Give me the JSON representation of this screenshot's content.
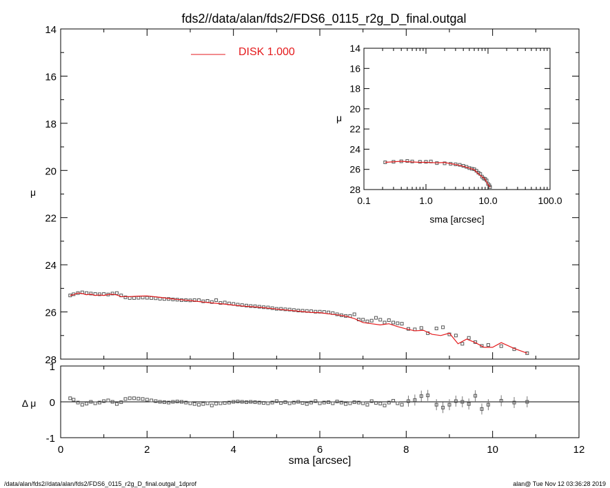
{
  "chart_data": [
    {
      "id": "main",
      "type": "scatter",
      "title": "fds2//data/alan/fds2/FDS6_0115_r2g_D_final.outgal",
      "xlabel": "",
      "ylabel": "μ",
      "xlim": [
        0,
        12
      ],
      "ylim": [
        28,
        14
      ],
      "y_inverted": true,
      "x_ticks": [
        "0",
        "2",
        "4",
        "6",
        "8",
        "10",
        "12"
      ],
      "y_ticks": [
        "14",
        "16",
        "18",
        "20",
        "22",
        "24",
        "26",
        "28"
      ],
      "legend": {
        "label": "DISK  1.000",
        "color": "#e41a1c",
        "position": "top-center"
      },
      "series": [
        {
          "marker": "square",
          "color": "#555555",
          "x": [
            0.22,
            0.3,
            0.4,
            0.5,
            0.6,
            0.7,
            0.8,
            0.9,
            1.0,
            1.1,
            1.2,
            1.3,
            1.4,
            1.5,
            1.6,
            1.7,
            1.8,
            1.9,
            2.0,
            2.1,
            2.2,
            2.3,
            2.4,
            2.5,
            2.6,
            2.7,
            2.8,
            2.9,
            3.0,
            3.1,
            3.2,
            3.3,
            3.4,
            3.5,
            3.6,
            3.7,
            3.8,
            3.9,
            4.0,
            4.1,
            4.2,
            4.3,
            4.4,
            4.5,
            4.6,
            4.7,
            4.8,
            4.9,
            5.0,
            5.1,
            5.2,
            5.3,
            5.4,
            5.5,
            5.6,
            5.7,
            5.8,
            5.9,
            6.0,
            6.1,
            6.2,
            6.3,
            6.4,
            6.5,
            6.6,
            6.7,
            6.8,
            6.9,
            7.0,
            7.1,
            7.2,
            7.3,
            7.4,
            7.5,
            7.6,
            7.7,
            7.8,
            7.9,
            8.05,
            8.2,
            8.35,
            8.5,
            8.7,
            8.85,
            9.0,
            9.15,
            9.3,
            9.45,
            9.6,
            9.75,
            9.9,
            10.2,
            10.5,
            10.8
          ],
          "y": [
            25.3,
            25.25,
            25.2,
            25.17,
            25.2,
            25.22,
            25.24,
            25.25,
            25.24,
            25.26,
            25.22,
            25.2,
            25.3,
            25.38,
            25.41,
            25.41,
            25.4,
            25.39,
            25.4,
            25.41,
            25.42,
            25.44,
            25.45,
            25.45,
            25.47,
            25.48,
            25.5,
            25.5,
            25.51,
            25.5,
            25.5,
            25.55,
            25.53,
            25.58,
            25.5,
            25.62,
            25.6,
            25.64,
            25.66,
            25.69,
            25.71,
            25.73,
            25.75,
            25.76,
            25.78,
            25.8,
            25.81,
            25.84,
            25.87,
            25.87,
            25.89,
            25.9,
            25.92,
            25.94,
            25.95,
            25.96,
            25.97,
            25.99,
            25.99,
            26.0,
            26.02,
            26.05,
            26.1,
            26.14,
            26.17,
            26.17,
            26.1,
            26.32,
            26.33,
            26.4,
            26.37,
            26.25,
            26.33,
            26.45,
            26.35,
            26.45,
            26.48,
            26.5,
            26.72,
            26.74,
            26.68,
            26.9,
            26.7,
            26.65,
            26.95,
            27.0,
            27.35,
            27.1,
            27.28,
            27.44,
            27.4,
            27.45,
            27.58,
            27.75
          ]
        },
        {
          "type": "line",
          "color": "#e41a1c",
          "x": [
            0.22,
            0.3,
            0.4,
            0.5,
            0.6,
            0.7,
            0.8,
            0.9,
            1.0,
            1.1,
            1.2,
            1.3,
            1.4,
            1.6,
            1.8,
            2.0,
            2.3,
            2.6,
            3.0,
            3.4,
            3.8,
            4.2,
            4.6,
            5.0,
            5.4,
            5.8,
            6.0,
            6.2,
            6.4,
            6.6,
            6.8,
            7.0,
            7.2,
            7.4,
            7.6,
            7.8,
            8.0,
            8.2,
            8.4,
            8.6,
            8.8,
            9.0,
            9.2,
            9.4,
            9.6,
            9.8,
            10.0,
            10.2,
            10.5,
            10.8
          ],
          "y": [
            25.3,
            25.27,
            25.2,
            25.22,
            25.27,
            25.25,
            25.3,
            25.28,
            25.3,
            25.26,
            25.25,
            25.28,
            25.35,
            25.35,
            25.33,
            25.32,
            25.38,
            25.45,
            25.52,
            25.6,
            25.67,
            25.75,
            25.8,
            25.88,
            25.95,
            26.02,
            26.03,
            26.08,
            26.12,
            26.18,
            26.28,
            26.45,
            26.5,
            26.55,
            26.5,
            26.62,
            26.72,
            26.8,
            26.78,
            26.95,
            27.0,
            26.9,
            27.35,
            27.15,
            27.3,
            27.5,
            27.5,
            27.3,
            27.55,
            27.75
          ]
        }
      ]
    },
    {
      "id": "inset",
      "type": "line",
      "xlabel": "sma [arcsec]",
      "ylabel": "μ",
      "x_scale": "log",
      "xlim": [
        0.1,
        100.0
      ],
      "ylim": [
        28,
        14
      ],
      "y_inverted": true,
      "x_ticks": [
        "0.1",
        "1.0",
        "10.0",
        "100.0"
      ],
      "y_ticks": [
        "14",
        "16",
        "18",
        "20",
        "22",
        "24",
        "26",
        "28"
      ],
      "series": [
        {
          "marker": "square",
          "color": "#555555",
          "x": [
            0.22,
            0.3,
            0.4,
            0.5,
            0.6,
            0.8,
            1.0,
            1.2,
            1.5,
            2.0,
            2.5,
            3.0,
            3.5,
            4.0,
            4.5,
            5.0,
            5.5,
            6.0,
            6.5,
            7.0,
            7.5,
            8.0,
            8.5,
            9.0,
            9.5,
            10.0,
            10.5,
            10.8
          ],
          "y": [
            25.3,
            25.25,
            25.2,
            25.17,
            25.22,
            25.25,
            25.25,
            25.22,
            25.38,
            25.4,
            25.45,
            25.5,
            25.55,
            25.65,
            25.75,
            25.87,
            25.94,
            25.99,
            26.14,
            26.33,
            26.45,
            26.72,
            26.9,
            26.95,
            27.1,
            27.44,
            27.58,
            27.75
          ]
        },
        {
          "type": "line",
          "color": "#e41a1c",
          "x": [
            0.22,
            0.4,
            0.6,
            0.8,
            1.0,
            1.5,
            2.0,
            3.0,
            4.0,
            5.0,
            6.0,
            7.0,
            8.0,
            9.0,
            10.0,
            10.8
          ],
          "y": [
            25.3,
            25.2,
            25.27,
            25.3,
            25.3,
            25.35,
            25.32,
            25.52,
            25.7,
            25.88,
            26.03,
            26.45,
            26.72,
            27.0,
            27.5,
            27.75
          ]
        }
      ]
    },
    {
      "id": "residual",
      "type": "scatter",
      "xlabel": "sma [arcsec]",
      "ylabel": "Δ μ",
      "xlim": [
        0,
        12
      ],
      "ylim": [
        -1,
        1
      ],
      "x_ticks": [
        "0",
        "2",
        "4",
        "6",
        "8",
        "10",
        "12"
      ],
      "y_ticks": [
        "1",
        "0",
        "-1"
      ],
      "zero_line": 0,
      "series": [
        {
          "marker": "square",
          "color": "#555555",
          "x": [
            0.22,
            0.3,
            0.4,
            0.5,
            0.6,
            0.7,
            0.8,
            0.9,
            1.0,
            1.1,
            1.2,
            1.3,
            1.4,
            1.5,
            1.6,
            1.7,
            1.8,
            1.9,
            2.0,
            2.1,
            2.2,
            2.3,
            2.4,
            2.5,
            2.6,
            2.7,
            2.8,
            2.9,
            3.0,
            3.1,
            3.2,
            3.3,
            3.4,
            3.5,
            3.6,
            3.7,
            3.8,
            3.9,
            4.0,
            4.1,
            4.2,
            4.3,
            4.4,
            4.5,
            4.6,
            4.7,
            4.8,
            4.9,
            5.0,
            5.1,
            5.2,
            5.3,
            5.4,
            5.5,
            5.6,
            5.7,
            5.8,
            5.9,
            6.0,
            6.1,
            6.2,
            6.3,
            6.4,
            6.5,
            6.6,
            6.7,
            6.8,
            6.9,
            7.0,
            7.1,
            7.2,
            7.3,
            7.4,
            7.5,
            7.6,
            7.7,
            7.8,
            7.9,
            8.05,
            8.2,
            8.35,
            8.5,
            8.7,
            8.85,
            9.0,
            9.15,
            9.3,
            9.45,
            9.6,
            9.75,
            9.9,
            10.2,
            10.5,
            10.8
          ],
          "y": [
            0.1,
            0.06,
            -0.02,
            -0.08,
            -0.05,
            0.0,
            -0.04,
            -0.02,
            0.02,
            0.04,
            0.0,
            -0.06,
            -0.01,
            0.08,
            0.1,
            0.1,
            0.09,
            0.08,
            0.06,
            0.04,
            0.02,
            0.0,
            -0.01,
            -0.02,
            0.0,
            0.01,
            0.0,
            -0.02,
            -0.04,
            -0.06,
            -0.08,
            -0.06,
            -0.04,
            -0.1,
            -0.05,
            -0.04,
            -0.03,
            -0.02,
            0.0,
            0.01,
            0.0,
            -0.01,
            0.0,
            -0.01,
            -0.02,
            -0.03,
            -0.04,
            -0.02,
            0.02,
            -0.03,
            -0.01,
            -0.04,
            -0.02,
            0.0,
            -0.03,
            -0.06,
            -0.02,
            0.02,
            -0.04,
            -0.02,
            -0.01,
            -0.04,
            0.01,
            -0.02,
            -0.06,
            -0.04,
            -0.01,
            -0.02,
            -0.04,
            -0.08,
            0.02,
            -0.03,
            -0.05,
            -0.1,
            -0.02,
            0.03,
            -0.04,
            -0.08,
            0.02,
            0.05,
            0.16,
            0.18,
            -0.08,
            -0.16,
            -0.08,
            0.02,
            0.0,
            -0.06,
            0.17,
            -0.2,
            -0.08,
            0.03,
            -0.02,
            0.0
          ]
        }
      ]
    }
  ],
  "footer": {
    "left": "/data/alan/fds2//data/alan/fds2/FDS6_0115_r2g_D_final.outgal_1dprof",
    "right": "alan@  Tue Nov 12 03:36:28 2019"
  }
}
